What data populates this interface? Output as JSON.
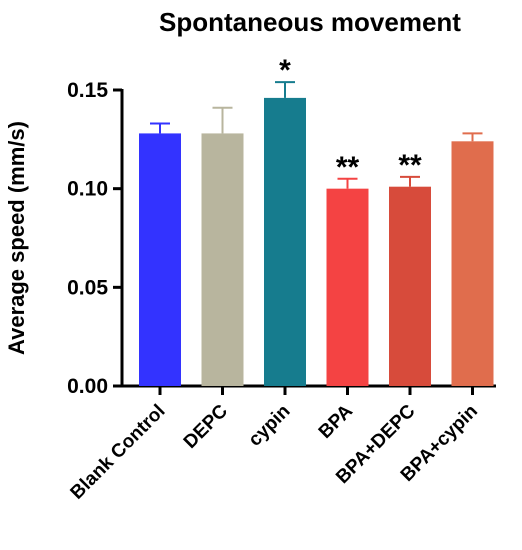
{
  "chart_data": {
    "type": "bar",
    "title": "Spontaneous movement",
    "ylabel": "Average speed (mm/s)",
    "xlabel": "",
    "ylim": [
      0,
      0.15
    ],
    "yticks": [
      "0.00",
      "0.05",
      "0.10",
      "0.15"
    ],
    "categories": [
      "Blank Control",
      "DEPC",
      "cypin",
      "BPA",
      "BPA+DEPC",
      "BPA+cypin"
    ],
    "values": [
      0.128,
      0.128,
      0.146,
      0.1,
      0.101,
      0.124
    ],
    "errors": [
      0.005,
      0.013,
      0.008,
      0.005,
      0.005,
      0.004
    ],
    "significance": [
      "",
      "",
      "*",
      "**",
      "**",
      ""
    ],
    "colors": [
      "#3333ff",
      "#b8b59e",
      "#167c8e",
      "#f44343",
      "#d74b3b",
      "#e06d4d"
    ],
    "grid": false,
    "legend": "none"
  }
}
